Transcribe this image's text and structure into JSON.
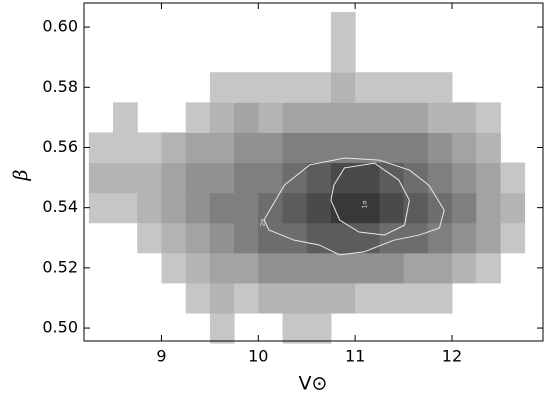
{
  "chart_data": {
    "type": "hist2d",
    "xlabel": "V⊙",
    "ylabel": "β",
    "xlim": [
      8.2,
      12.94
    ],
    "ylim": [
      0.4957,
      0.608
    ],
    "xticks": [
      9,
      10,
      11,
      12
    ],
    "yticks": [
      {
        "value": 0.5,
        "label": "0.50"
      },
      {
        "value": 0.52,
        "label": "0.52"
      },
      {
        "value": 0.54,
        "label": "0.54"
      },
      {
        "value": 0.56,
        "label": "0.56"
      },
      {
        "value": 0.58,
        "label": "0.58"
      },
      {
        "value": 0.6,
        "label": "0.60"
      }
    ],
    "xbins": [
      8.25,
      8.5,
      8.75,
      9,
      9.25,
      9.5,
      9.75,
      10,
      10.25,
      10.5,
      10.75,
      11,
      11.25,
      11.5,
      11.75,
      12,
      12.25,
      12.5,
      12.75
    ],
    "ybins": [
      0.495,
      0.505,
      0.515,
      0.525,
      0.535,
      0.545,
      0.555,
      0.565,
      0.575,
      0.585,
      0.595,
      0.605
    ],
    "cmap": [
      "#c6c6c6",
      "#383838"
    ],
    "levels": 9,
    "values": [
      [
        0,
        0,
        0,
        0,
        0,
        1,
        0,
        0,
        1,
        1,
        0,
        0,
        0,
        0,
        0,
        0,
        0,
        0
      ],
      [
        0,
        0,
        0,
        0,
        1,
        2,
        1,
        2,
        2,
        2,
        2,
        1,
        1,
        1,
        1,
        0,
        0,
        0
      ],
      [
        0,
        0,
        0,
        1,
        2,
        3,
        3,
        4,
        4,
        4,
        4,
        4,
        4,
        3,
        3,
        2,
        1,
        0
      ],
      [
        0,
        0,
        1,
        2,
        3,
        4,
        5,
        6,
        6,
        7,
        7,
        7,
        6,
        6,
        5,
        4,
        3,
        1
      ],
      [
        1,
        1,
        2,
        3,
        4,
        5,
        5,
        6,
        7,
        8,
        9,
        9,
        8,
        7,
        6,
        5,
        3,
        2
      ],
      [
        2,
        2,
        2,
        3,
        4,
        4,
        5,
        5,
        6,
        7,
        8,
        8,
        7,
        6,
        5,
        4,
        3,
        1
      ],
      [
        1,
        1,
        1,
        2,
        3,
        3,
        4,
        4,
        5,
        5,
        5,
        5,
        5,
        5,
        4,
        3,
        2,
        0
      ],
      [
        0,
        1,
        0,
        0,
        1,
        2,
        3,
        2,
        3,
        3,
        3,
        3,
        3,
        3,
        2,
        2,
        1,
        0
      ],
      [
        0,
        0,
        0,
        0,
        0,
        1,
        1,
        1,
        1,
        1,
        2,
        1,
        1,
        1,
        1,
        0,
        0,
        0
      ],
      [
        0,
        0,
        0,
        0,
        0,
        0,
        0,
        0,
        0,
        0,
        1,
        0,
        0,
        0,
        0,
        0,
        0,
        0
      ],
      [
        0,
        0,
        0,
        0,
        0,
        0,
        0,
        0,
        0,
        0,
        1,
        0,
        0,
        0,
        0,
        0,
        0,
        0
      ]
    ],
    "contours": [
      {
        "label": "2σ",
        "color": "#e8e8e8",
        "label_at": [
          10.05,
          0.535
        ],
        "x": [
          10.06,
          10.27,
          10.53,
          10.89,
          11.25,
          11.56,
          11.76,
          11.92,
          11.87,
          11.66,
          11.4,
          11.09,
          10.84,
          10.63,
          10.37,
          10.11
        ],
        "y": [
          0.536,
          0.5475,
          0.5542,
          0.5565,
          0.5558,
          0.5525,
          0.5475,
          0.5392,
          0.5332,
          0.5309,
          0.5292,
          0.5253,
          0.5243,
          0.5276,
          0.5292,
          0.5326
        ]
      },
      {
        "label": "1σ",
        "color": "#e8e8e8",
        "label_at": [
          11.1,
          0.541
        ],
        "x": [
          10.78,
          10.89,
          11.2,
          11.45,
          11.56,
          11.51,
          11.3,
          11.04,
          10.84,
          10.75
        ],
        "y": [
          0.5475,
          0.5532,
          0.5548,
          0.5492,
          0.5425,
          0.5342,
          0.5309,
          0.5319,
          0.5359,
          0.5425
        ]
      }
    ]
  }
}
